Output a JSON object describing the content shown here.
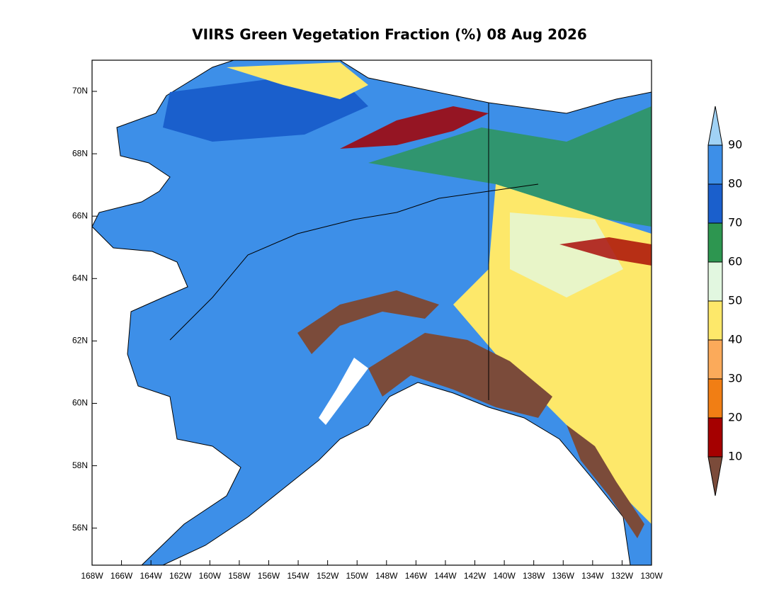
{
  "title": "VIIRS Green Vegetation Fraction (%) 08 Aug 2026",
  "lat_ticks": [
    "70N",
    "68N",
    "66N",
    "64N",
    "62N",
    "60N",
    "58N",
    "56N"
  ],
  "lon_ticks": [
    "168W",
    "166W",
    "164W",
    "162W",
    "160W",
    "158W",
    "156W",
    "154W",
    "152W",
    "150W",
    "148W",
    "146W",
    "144W",
    "142W",
    "140W",
    "138W",
    "136W",
    "134W",
    "132W",
    "130W"
  ],
  "colorbar": {
    "levels": [
      90,
      80,
      70,
      60,
      50,
      40,
      30,
      20,
      10
    ],
    "colors": [
      "#a0d2f5",
      "#3d8fe8",
      "#1a5fcc",
      "#2d9650",
      "#e2f7e0",
      "#fde86a",
      "#fbaa5a",
      "#f17e14",
      "#a50000",
      "#7b4b3a"
    ]
  }
}
